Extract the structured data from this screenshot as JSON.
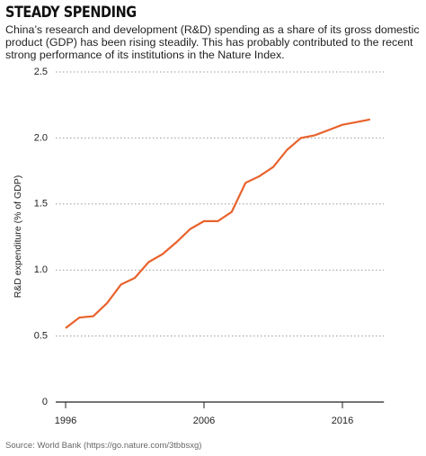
{
  "chart_data": {
    "type": "line",
    "title": "STEADY SPENDING",
    "subtitle": "China’s research and development (R&D) spending as a share of its gross domestic product (GDP) has been rising steadily. This has probably contributed to the recent strong performance of its institutions in the Nature Index.",
    "y_label": "R&D expenditure (% of GDP)",
    "source": "Source: World Bank (https://go.nature.com/3tbbsxg)",
    "x": [
      1996,
      1997,
      1998,
      1999,
      2000,
      2001,
      2002,
      2003,
      2004,
      2005,
      2006,
      2007,
      2008,
      2009,
      2010,
      2011,
      2012,
      2013,
      2014,
      2015,
      2016,
      2017,
      2018
    ],
    "series": [
      {
        "color": "#e8622c",
        "values": [
          0.56,
          0.64,
          0.65,
          0.75,
          0.89,
          0.94,
          1.06,
          1.12,
          1.21,
          1.31,
          1.37,
          1.37,
          1.44,
          1.66,
          1.71,
          1.78,
          1.91,
          2.0,
          2.02,
          2.06,
          2.1,
          2.12,
          2.14
        ]
      }
    ],
    "xlim": [
      1995,
      2019
    ],
    "xticks": [
      1996,
      2006,
      2016
    ],
    "ylim": [
      0,
      2.5
    ],
    "yticks": [
      0,
      0.5,
      {
        "value": 1,
        "label": "1.0"
      },
      1.5,
      {
        "value": 2,
        "label": "2.0"
      },
      2.5
    ],
    "grid": true
  }
}
